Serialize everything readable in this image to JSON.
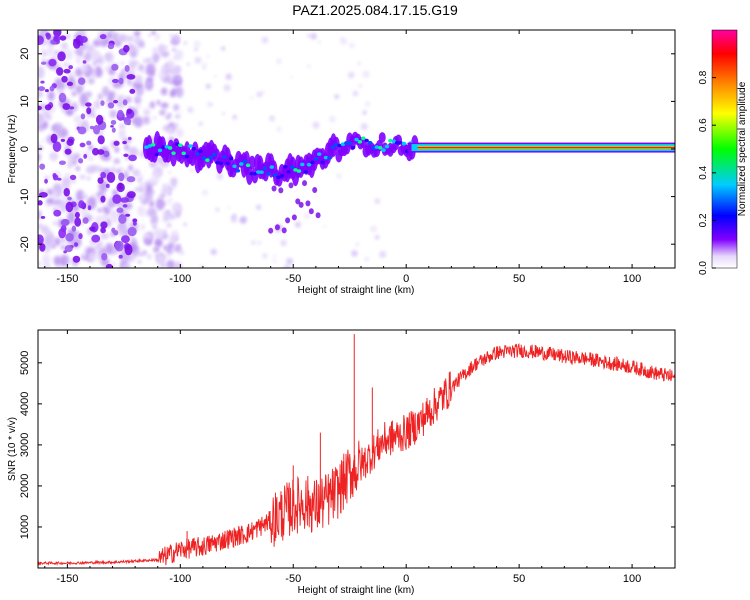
{
  "figure": {
    "title": "PAZ1.2025.084.17.15.G19"
  },
  "chart_data": [
    {
      "type": "heatmap",
      "title": "",
      "xlabel": "Height of straight line (km)",
      "ylabel": "Frequency (Hz)",
      "xlim": [
        -163,
        119
      ],
      "ylim": [
        -25,
        25
      ],
      "xticks": [
        -150,
        -100,
        -50,
        0,
        50,
        100
      ],
      "yticks": [
        -20,
        -10,
        0,
        10,
        20
      ],
      "colorbar": {
        "label": "Normalized spectral amplitude",
        "range": [
          0,
          1
        ],
        "ticks": [
          "0.0",
          "0.2",
          "0.4",
          "0.6",
          "0.8"
        ],
        "colormap": [
          "#ffffff",
          "#d8c8f8",
          "#8000ff",
          "#0000ff",
          "#00ffff",
          "#00ff00",
          "#ffff00",
          "#ff8000",
          "#ff0000",
          "#ff00b0"
        ]
      },
      "ridge": {
        "description_points": [
          {
            "x": -115,
            "y": 0
          },
          {
            "x": -100,
            "y": 0
          },
          {
            "x": -85,
            "y": -2
          },
          {
            "x": -70,
            "y": -4
          },
          {
            "x": -55,
            "y": -5
          },
          {
            "x": -45,
            "y": -4
          },
          {
            "x": -35,
            "y": -1
          },
          {
            "x": -25,
            "y": 1
          },
          {
            "x": -10,
            "y": 1
          },
          {
            "x": 0,
            "y": 0.3
          },
          {
            "x": 119,
            "y": 0.3
          }
        ],
        "strong_from_x": 5
      },
      "scatter_zone": {
        "x_from": -163,
        "x_to": -120,
        "y_from": -25,
        "y_to": 25
      }
    },
    {
      "type": "line",
      "title": "",
      "xlabel": "Height of straight line (km)",
      "ylabel": "SNR (10 * v/v)",
      "xlim": [
        -163,
        119
      ],
      "ylim": [
        0,
        5800
      ],
      "xticks": [
        -150,
        -100,
        -50,
        0,
        50,
        100
      ],
      "yticks": [
        1000,
        2000,
        3000,
        4000,
        5000
      ],
      "color": "#ee2222",
      "series": [
        {
          "x": [
            -163,
            -150,
            -130,
            -110,
            -100,
            -90,
            -80,
            -70,
            -60,
            -50,
            -45,
            -40,
            -35,
            -30,
            -25,
            -20,
            -15,
            -10,
            -5,
            0,
            5,
            10,
            20,
            30,
            40,
            50,
            60,
            70,
            80,
            90,
            100,
            110,
            119
          ],
          "values": [
            120,
            120,
            140,
            200,
            450,
            520,
            700,
            850,
            1150,
            1500,
            1600,
            1500,
            1650,
            1900,
            2300,
            2500,
            2800,
            3100,
            3200,
            3300,
            3500,
            3800,
            4400,
            4950,
            5250,
            5300,
            5250,
            5150,
            5100,
            5000,
            4900,
            4750,
            4650
          ]
        }
      ],
      "spikes": [
        {
          "x": -23,
          "y": 5700
        },
        {
          "x": -15,
          "y": 4400
        },
        {
          "x": -38,
          "y": 3300
        },
        {
          "x": -50,
          "y": 2500
        },
        {
          "x": -97,
          "y": 900
        }
      ]
    }
  ]
}
